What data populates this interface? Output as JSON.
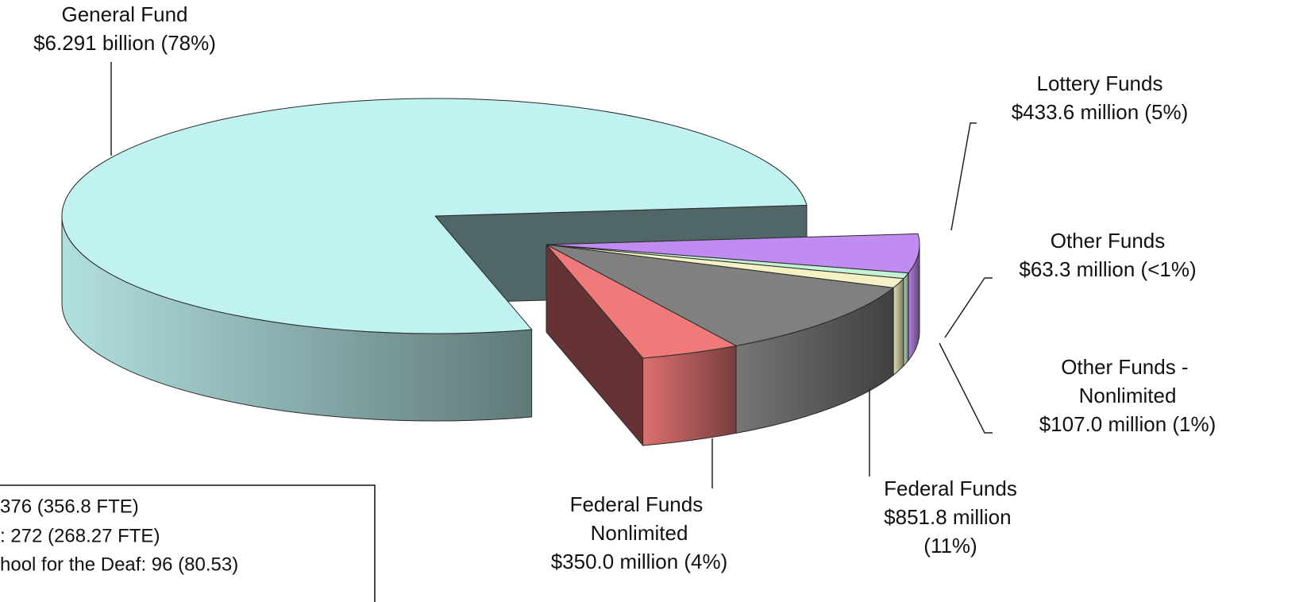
{
  "chart_data": {
    "type": "pie",
    "categories": [
      "General Fund",
      "Lottery Funds",
      "Other Funds",
      "Other Funds - Nonlimited",
      "Federal Funds",
      "Federal Funds Nonlimited"
    ],
    "values": [
      6291,
      433.6,
      63.3,
      107.0,
      851.8,
      350.0
    ],
    "value_labels": [
      "$6.291 billion (78%)",
      "$433.6 million (5%)",
      "$63.3 million (<1%)",
      "$107.0 million (1%)",
      "$851.8 million (11%)",
      "$350.0 million (4%)"
    ],
    "colors": [
      "#c0f2f2",
      "#c08cf2",
      "#c4f2d4",
      "#f4f2c4",
      "#808080",
      "#f07a7a"
    ]
  },
  "note_lines": [
    "376 (356.8 FTE)",
    ": 272 (268.27 FTE)",
    "hool for the Deaf: 96 (80.53)"
  ]
}
